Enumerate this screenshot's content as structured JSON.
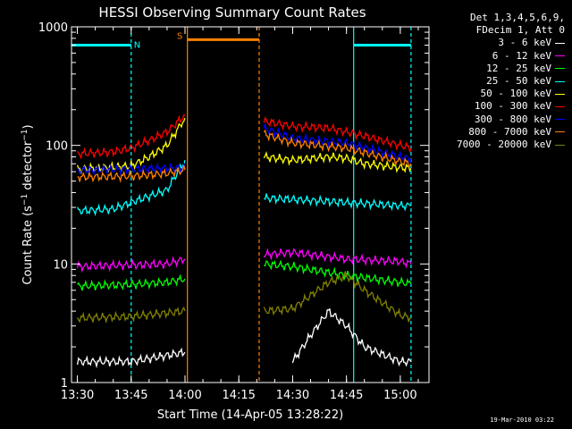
{
  "chart_data": {
    "type": "line",
    "title": "HESSI Observing Summary Count Rates",
    "xlabel": "Start Time (14-Apr-05 13:28:22)",
    "ylabel": "Count Rate (s^-1 detector^-1)",
    "yscale": "log",
    "ylim": [
      1,
      1000
    ],
    "xlim": [
      "13:28:22",
      "15:08:00"
    ],
    "x_ticks": [
      "13:30",
      "13:45",
      "14:00",
      "14:15",
      "14:30",
      "14:45",
      "15:00"
    ],
    "y_ticks": [
      "1",
      "10",
      "100",
      "1000"
    ],
    "legend": {
      "placement": "outside-right",
      "header": [
        "Det 1,3,4,5,6,9,",
        "FDecim 1, Att 0"
      ]
    },
    "series": [
      {
        "name": "3 - 6 keV",
        "color": "#ffffff",
        "points": [
          [
            "13:30",
            1.5
          ],
          [
            "13:45",
            1.5
          ],
          [
            "14:00",
            1.8
          ],
          [
            "14:30",
            1.5
          ],
          [
            "14:35",
            2.5
          ],
          [
            "14:40",
            4
          ],
          [
            "14:45",
            3
          ],
          [
            "14:50",
            2
          ],
          [
            "15:00",
            1.5
          ],
          [
            "15:03",
            1.5
          ]
        ]
      },
      {
        "name": "6 - 12 keV",
        "color": "#ff00ff",
        "points": [
          [
            "13:30",
            9.5
          ],
          [
            "13:45",
            9.8
          ],
          [
            "13:55",
            10
          ],
          [
            "14:00",
            11
          ],
          [
            "14:22",
            12
          ],
          [
            "14:30",
            12.5
          ],
          [
            "14:45",
            11
          ],
          [
            "15:00",
            10.5
          ],
          [
            "15:03",
            10
          ]
        ]
      },
      {
        "name": "12 - 25 keV",
        "color": "#00ff00",
        "points": [
          [
            "13:30",
            6.5
          ],
          [
            "13:45",
            6.7
          ],
          [
            "13:55",
            7
          ],
          [
            "14:00",
            7.5
          ],
          [
            "14:22",
            10
          ],
          [
            "14:30",
            9.5
          ],
          [
            "14:45",
            8
          ],
          [
            "15:00",
            7
          ],
          [
            "15:03",
            6.8
          ]
        ]
      },
      {
        "name": "25 - 50 keV",
        "color": "#00ffff",
        "points": [
          [
            "13:30",
            28
          ],
          [
            "13:40",
            29
          ],
          [
            "13:45",
            33
          ],
          [
            "13:55",
            42
          ],
          [
            "13:58",
            60
          ],
          [
            "14:00",
            75
          ],
          [
            "14:22",
            36
          ],
          [
            "14:30",
            35
          ],
          [
            "14:45",
            33
          ],
          [
            "15:00",
            31
          ],
          [
            "15:03",
            31
          ]
        ]
      },
      {
        "name": "50 - 100 keV",
        "color": "#ffff00",
        "points": [
          [
            "13:30",
            63
          ],
          [
            "13:45",
            67
          ],
          [
            "13:50",
            80
          ],
          [
            "13:55",
            100
          ],
          [
            "14:00",
            170
          ],
          [
            "14:22",
            80
          ],
          [
            "14:30",
            75
          ],
          [
            "14:40",
            80
          ],
          [
            "14:45",
            78
          ],
          [
            "14:50",
            70
          ],
          [
            "15:00",
            65
          ],
          [
            "15:03",
            64
          ]
        ]
      },
      {
        "name": "100 - 300 keV",
        "color": "#ff0000",
        "points": [
          [
            "13:30",
            85
          ],
          [
            "13:40",
            88
          ],
          [
            "13:45",
            95
          ],
          [
            "13:50",
            110
          ],
          [
            "13:55",
            130
          ],
          [
            "14:00",
            180
          ],
          [
            "14:22",
            160
          ],
          [
            "14:30",
            145
          ],
          [
            "14:40",
            140
          ],
          [
            "14:45",
            130
          ],
          [
            "14:50",
            120
          ],
          [
            "15:00",
            100
          ],
          [
            "15:03",
            95
          ]
        ]
      },
      {
        "name": "300 - 800 keV",
        "color": "#0000ff",
        "points": [
          [
            "13:30",
            62
          ],
          [
            "13:45",
            63
          ],
          [
            "14:00",
            65
          ],
          [
            "14:22",
            140
          ],
          [
            "14:30",
            115
          ],
          [
            "14:45",
            105
          ],
          [
            "15:00",
            80
          ],
          [
            "15:03",
            77
          ]
        ]
      },
      {
        "name": "800 - 7000 keV",
        "color": "#ff8000",
        "points": [
          [
            "13:30",
            54
          ],
          [
            "13:45",
            55
          ],
          [
            "13:55",
            58
          ],
          [
            "14:00",
            62
          ],
          [
            "14:22",
            125
          ],
          [
            "14:30",
            105
          ],
          [
            "14:45",
            95
          ],
          [
            "15:00",
            73
          ],
          [
            "15:03",
            70
          ]
        ]
      },
      {
        "name": "7000 - 20000 keV",
        "color": "#808000",
        "points": [
          [
            "13:30",
            3.5
          ],
          [
            "13:45",
            3.6
          ],
          [
            "14:00",
            4
          ],
          [
            "14:22",
            4
          ],
          [
            "14:30",
            4.2
          ],
          [
            "14:40",
            7
          ],
          [
            "14:45",
            8
          ],
          [
            "14:50",
            6
          ],
          [
            "15:00",
            3.7
          ],
          [
            "15:03",
            3.5
          ]
        ]
      }
    ],
    "annotations": [
      {
        "text": "N",
        "color": "#00ffff",
        "range": [
          "13:28:22",
          "13:45:00"
        ],
        "level": 700
      },
      {
        "text": "",
        "color": "#00ffff",
        "range": [
          "14:47:00",
          "15:03:00"
        ],
        "level": 700
      },
      {
        "text": "S",
        "color": "#ff8000",
        "range": [
          "14:00:40",
          "14:20:40"
        ],
        "level": 780
      }
    ],
    "grid": false
  },
  "footer": {
    "timestamp": "19-Mar-2010 03:22"
  },
  "colors": {
    "background": "#000000",
    "axes": "#ffffff"
  }
}
